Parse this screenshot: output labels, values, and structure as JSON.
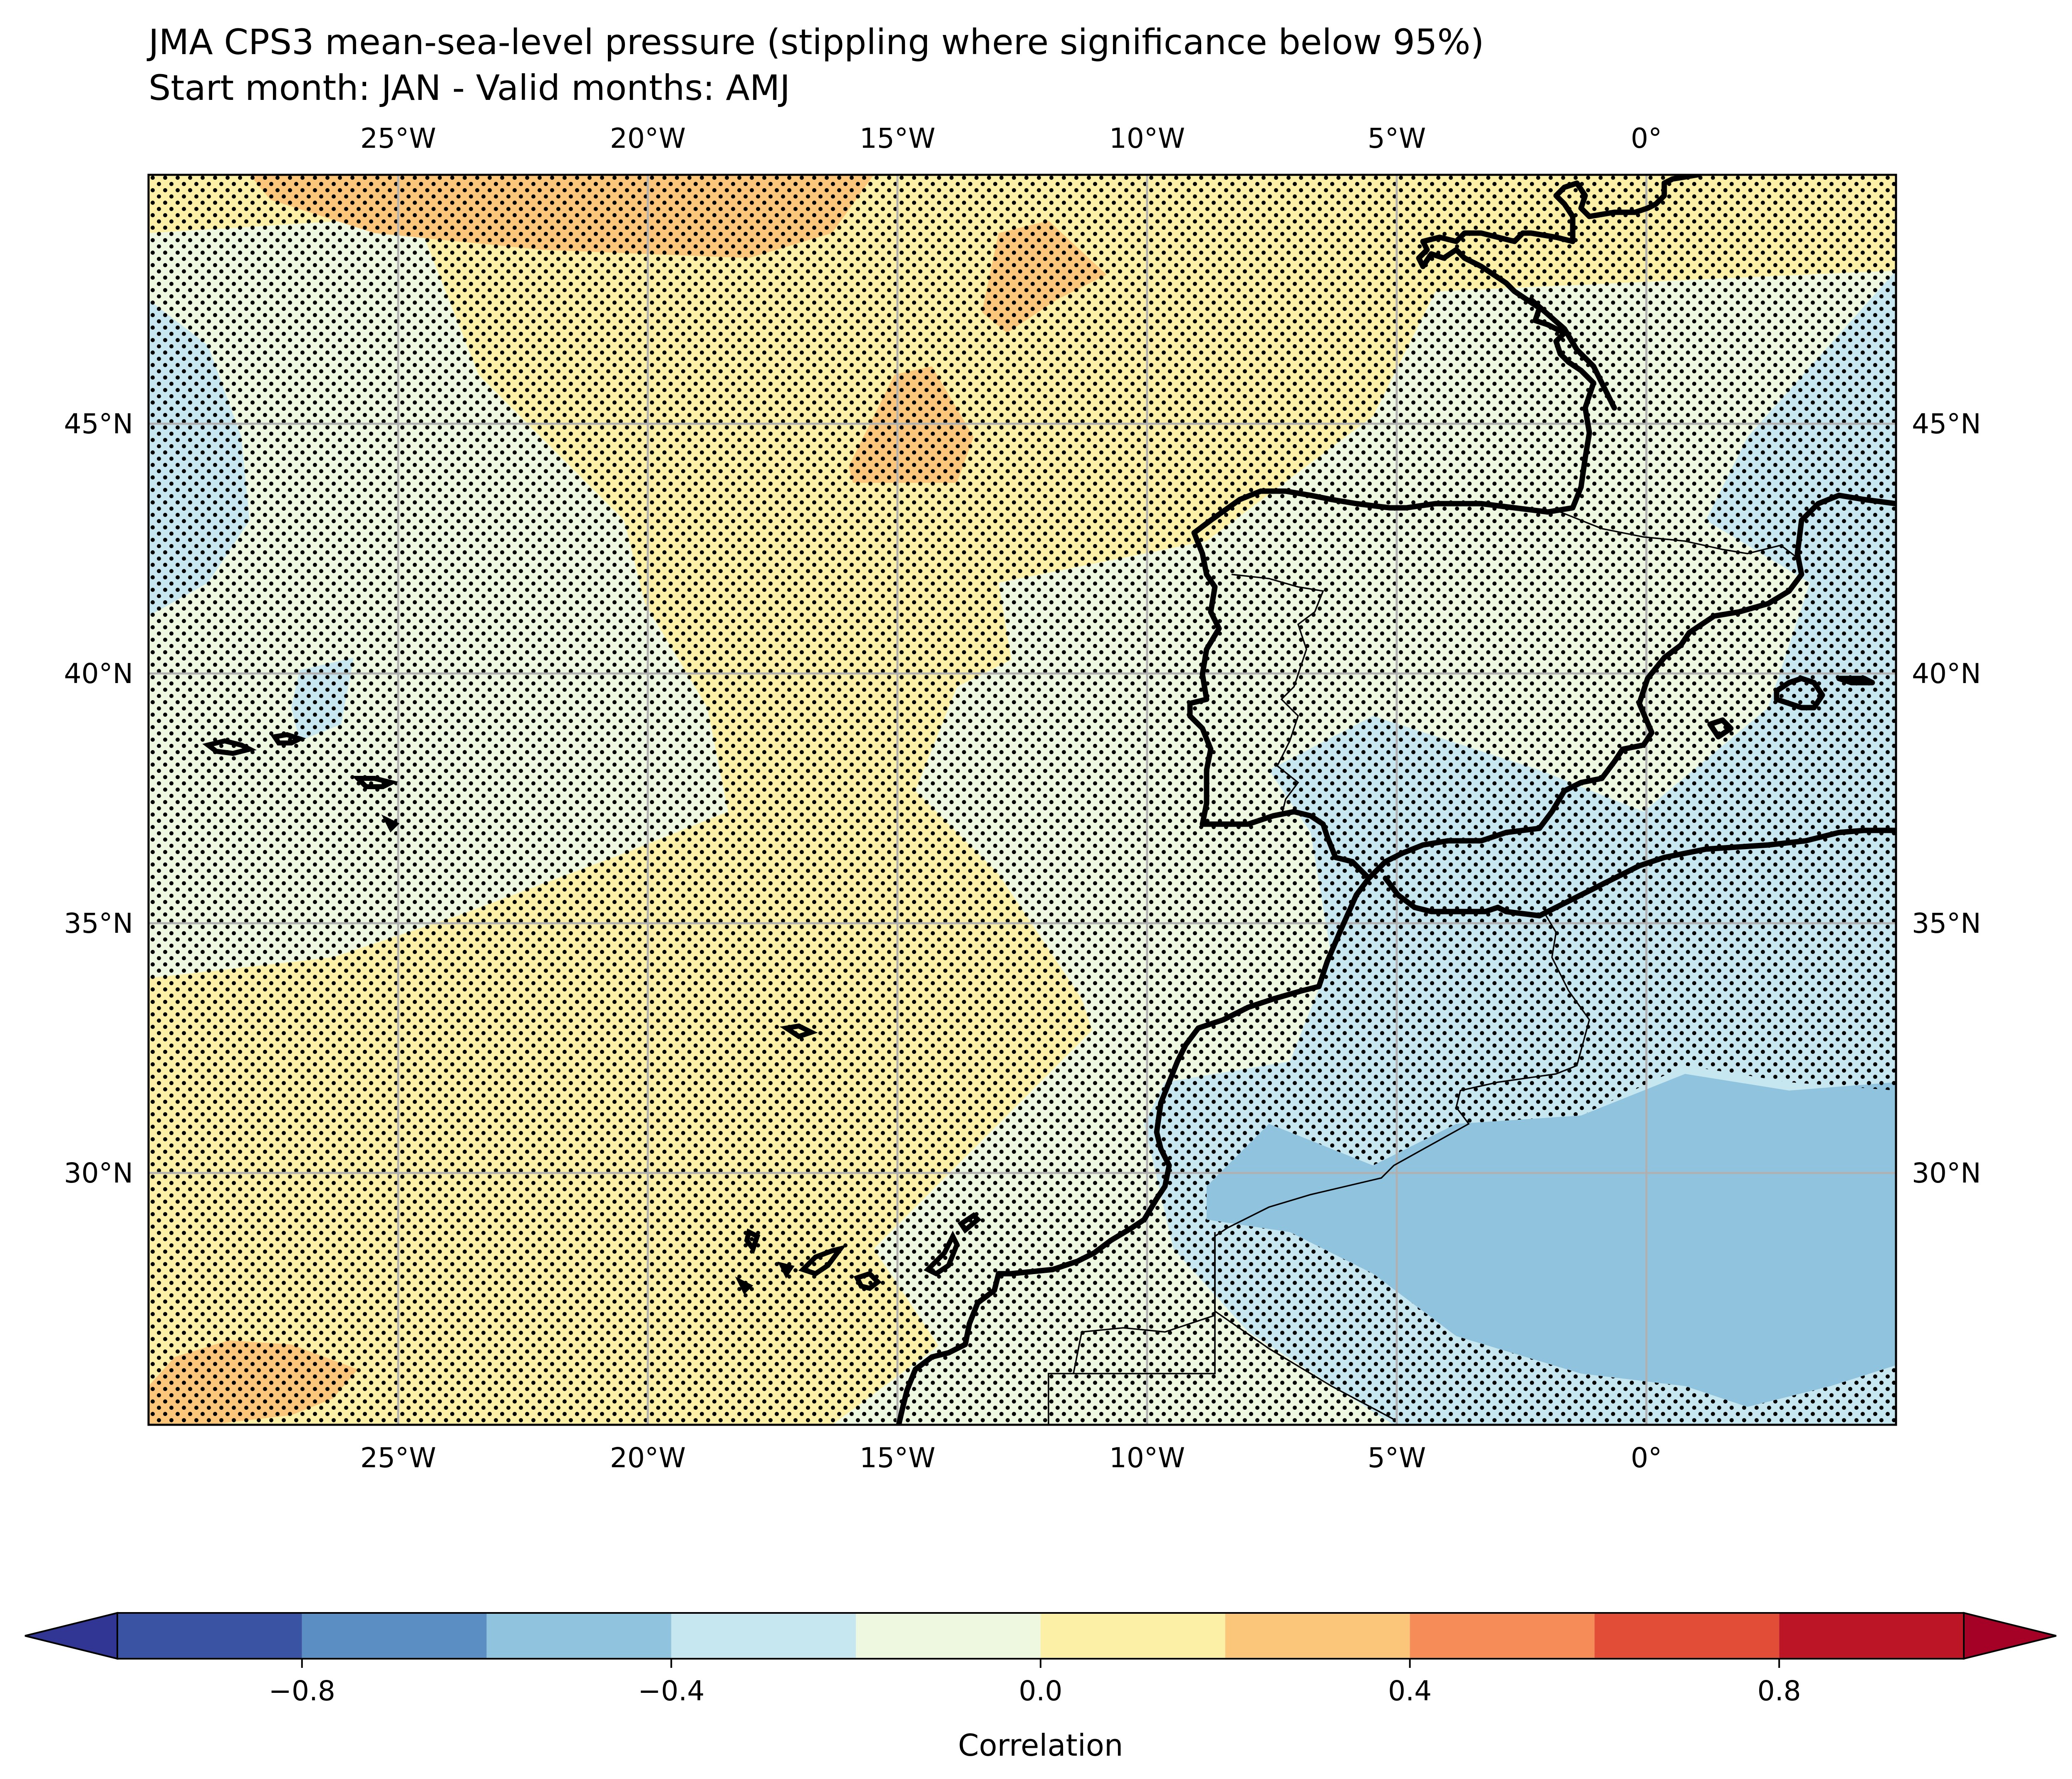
{
  "title_line1": "JMA CPS3 mean-sea-level pressure (stippling where significance below 95%)",
  "title_line2": "Start month: JAN - Valid months: AMJ",
  "map": {
    "lon_ticks": [
      "25°W",
      "20°W",
      "15°W",
      "10°W",
      "5°W",
      "0°"
    ],
    "lat_ticks": [
      "45°N",
      "40°N",
      "35°N",
      "30°N"
    ],
    "extent": {
      "lon_min": -30,
      "lon_max": 5,
      "lat_min": 25,
      "lat_max": 50
    },
    "gridlines": true,
    "stippling": "significance below 95%"
  },
  "colorbar": {
    "label": "Correlation",
    "tick_labels": [
      "−0.8",
      "−0.4",
      "0.0",
      "0.4",
      "0.8"
    ],
    "tick_values": [
      -0.8,
      -0.4,
      0.0,
      0.4,
      0.8
    ],
    "boundaries": [
      -1.0,
      -0.8,
      -0.6,
      -0.4,
      -0.2,
      0.0,
      0.2,
      0.4,
      0.6,
      0.8,
      1.0
    ],
    "colors": [
      "#3b53a3",
      "#5b8ec2",
      "#90c4de",
      "#c6e6f0",
      "#eef7df",
      "#fbf0a6",
      "#fbc67a",
      "#f68c58",
      "#e24d37",
      "#bb1526"
    ],
    "extend_min_color": "#313695",
    "extend_max_color": "#a50026"
  }
}
